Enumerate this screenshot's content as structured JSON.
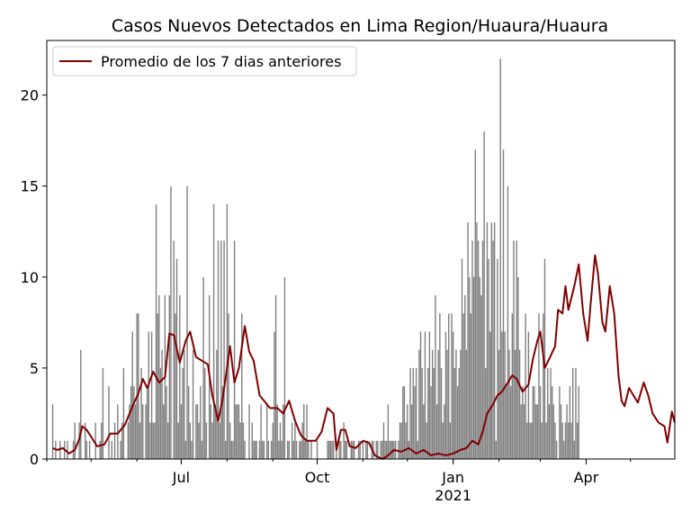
{
  "chart_data": {
    "type": "bar",
    "title": "Casos Nuevos Detectados en Lima Region/Huaura/Huaura",
    "xlabel": "",
    "ylabel": "",
    "x_range": [
      "2020-04-01",
      "2021-05-31"
    ],
    "ylim": [
      0,
      23
    ],
    "y_ticks": [
      0,
      5,
      10,
      15,
      20
    ],
    "x_ticks": [
      {
        "date": "2020-07-01",
        "label": "Jul",
        "sublabel": ""
      },
      {
        "date": "2020-10-01",
        "label": "Oct",
        "sublabel": ""
      },
      {
        "date": "2021-01-01",
        "label": "Jan",
        "sublabel": "2021"
      },
      {
        "date": "2021-04-01",
        "label": "Apr",
        "sublabel": ""
      }
    ],
    "grid": false,
    "legend": {
      "position": "top-left",
      "entries": [
        "Promedio de los 7 dias anteriores"
      ]
    },
    "colors": {
      "bars": "#808080",
      "line": "#800000"
    },
    "series": [
      {
        "name": "Casos nuevos",
        "type": "bar",
        "daily_values_from_start_date": "2020-04-05",
        "values": [
          3,
          0,
          1,
          0,
          0,
          1,
          0,
          0,
          1,
          0,
          1,
          0,
          0,
          0,
          1,
          2,
          0,
          0,
          2,
          6,
          0,
          0,
          2,
          1,
          0,
          1,
          0,
          0,
          0,
          2,
          0,
          0,
          1,
          2,
          5,
          0,
          0,
          0,
          4,
          0,
          1,
          0,
          2,
          0,
          3,
          0,
          1,
          2,
          5,
          0,
          0,
          2,
          3,
          4,
          7,
          4,
          3,
          8,
          8,
          2,
          5,
          3,
          0,
          3,
          4,
          7,
          2,
          7,
          2,
          2,
          14,
          8,
          9,
          5,
          6,
          3,
          9,
          4,
          2,
          9,
          15,
          0,
          12,
          8,
          11,
          2,
          9,
          3,
          5,
          6,
          1,
          15,
          4,
          2,
          1,
          6,
          0,
          3,
          3,
          2,
          4,
          1,
          10,
          5,
          2,
          0,
          9,
          3,
          2,
          14,
          3,
          6,
          12,
          2,
          12,
          4,
          12,
          1,
          14,
          8,
          2,
          1,
          1,
          12,
          3,
          3,
          3,
          2,
          8,
          2,
          1,
          0,
          0,
          3,
          0,
          2,
          1,
          1,
          1,
          0,
          1,
          3,
          1,
          1,
          0,
          3,
          1,
          0,
          1,
          2,
          7,
          9,
          3,
          1,
          2,
          1,
          3,
          10,
          0,
          1,
          1,
          0,
          2,
          1,
          2,
          1,
          0,
          1,
          1,
          2,
          3,
          1,
          3,
          1,
          0,
          1,
          0,
          0,
          0,
          1,
          0,
          0,
          0,
          0,
          0,
          0,
          1,
          1,
          1,
          1,
          1,
          0,
          1,
          0,
          1,
          1,
          0,
          2,
          1,
          1,
          0,
          0,
          1,
          1,
          1,
          0,
          0,
          1,
          1,
          0,
          1,
          0,
          1,
          1,
          0,
          0,
          1,
          1,
          0,
          1,
          1,
          0,
          1,
          1,
          2,
          1,
          1,
          3,
          1,
          1,
          1,
          1,
          1,
          0,
          1,
          2,
          2,
          4,
          4,
          2,
          3,
          1,
          5,
          3,
          5,
          4,
          5,
          1,
          6,
          7,
          5,
          3,
          7,
          2,
          5,
          7,
          4,
          6,
          5,
          9,
          3,
          6,
          8,
          5,
          2,
          3,
          7,
          6,
          8,
          2,
          8,
          7,
          5,
          6,
          4,
          5,
          6,
          11,
          8,
          9,
          6,
          13,
          10,
          8,
          12,
          10,
          17,
          13,
          12,
          10,
          9,
          12,
          18,
          5,
          13,
          11,
          7,
          13,
          12,
          13,
          1,
          11,
          6,
          22,
          7,
          17,
          7,
          4,
          15,
          6,
          4,
          8,
          12,
          6,
          12,
          10,
          6,
          3,
          4,
          3,
          8,
          2,
          7,
          2,
          2,
          4,
          4,
          3,
          3,
          8,
          4,
          2,
          8,
          11,
          2,
          5,
          3,
          5,
          4,
          3,
          2,
          1,
          0,
          4,
          3,
          2,
          1,
          2,
          3,
          2,
          4,
          2,
          5,
          1,
          5,
          2,
          4
        ]
      },
      {
        "name": "Promedio de los 7 dias anteriores",
        "type": "line",
        "points": [
          [
            "2020-04-05",
            0.6
          ],
          [
            "2020-04-08",
            0.5
          ],
          [
            "2020-04-12",
            0.6
          ],
          [
            "2020-04-16",
            0.3
          ],
          [
            "2020-04-20",
            0.5
          ],
          [
            "2020-04-23",
            1.1
          ],
          [
            "2020-04-25",
            1.8
          ],
          [
            "2020-04-28",
            1.6
          ],
          [
            "2020-05-02",
            1.1
          ],
          [
            "2020-05-05",
            0.7
          ],
          [
            "2020-05-10",
            0.8
          ],
          [
            "2020-05-14",
            1.4
          ],
          [
            "2020-05-19",
            1.4
          ],
          [
            "2020-05-24",
            1.9
          ],
          [
            "2020-05-29",
            2.9
          ],
          [
            "2020-06-02",
            3.6
          ],
          [
            "2020-06-05",
            4.4
          ],
          [
            "2020-06-08",
            3.9
          ],
          [
            "2020-06-12",
            4.8
          ],
          [
            "2020-06-16",
            4.2
          ],
          [
            "2020-06-20",
            4.5
          ],
          [
            "2020-06-23",
            6.9
          ],
          [
            "2020-06-26",
            6.8
          ],
          [
            "2020-06-30",
            5.3
          ],
          [
            "2020-07-04",
            6.5
          ],
          [
            "2020-07-07",
            7.0
          ],
          [
            "2020-07-11",
            5.6
          ],
          [
            "2020-07-15",
            5.4
          ],
          [
            "2020-07-19",
            5.2
          ],
          [
            "2020-07-22",
            3.5
          ],
          [
            "2020-07-26",
            2.1
          ],
          [
            "2020-07-29",
            3.3
          ],
          [
            "2020-08-03",
            6.2
          ],
          [
            "2020-08-06",
            4.2
          ],
          [
            "2020-08-09",
            5.0
          ],
          [
            "2020-08-13",
            7.3
          ],
          [
            "2020-08-16",
            5.9
          ],
          [
            "2020-08-19",
            5.4
          ],
          [
            "2020-08-23",
            3.5
          ],
          [
            "2020-08-26",
            3.2
          ],
          [
            "2020-08-30",
            2.8
          ],
          [
            "2020-09-04",
            2.8
          ],
          [
            "2020-09-08",
            2.5
          ],
          [
            "2020-09-12",
            3.2
          ],
          [
            "2020-09-16",
            2.1
          ],
          [
            "2020-09-20",
            1.3
          ],
          [
            "2020-09-24",
            1.0
          ],
          [
            "2020-09-30",
            1.0
          ],
          [
            "2020-10-04",
            1.5
          ],
          [
            "2020-10-08",
            2.8
          ],
          [
            "2020-10-12",
            2.5
          ],
          [
            "2020-10-14",
            0.5
          ],
          [
            "2020-10-17",
            1.6
          ],
          [
            "2020-10-20",
            1.6
          ],
          [
            "2020-10-23",
            0.7
          ],
          [
            "2020-10-27",
            0.6
          ],
          [
            "2020-11-01",
            1.0
          ],
          [
            "2020-11-05",
            0.9
          ],
          [
            "2020-11-09",
            0.2
          ],
          [
            "2020-11-14",
            0.0
          ],
          [
            "2020-11-18",
            0.2
          ],
          [
            "2020-11-22",
            0.5
          ],
          [
            "2020-11-27",
            0.4
          ],
          [
            "2020-12-02",
            0.6
          ],
          [
            "2020-12-07",
            0.3
          ],
          [
            "2020-12-12",
            0.5
          ],
          [
            "2020-12-17",
            0.2
          ],
          [
            "2020-12-22",
            0.3
          ],
          [
            "2020-12-27",
            0.2
          ],
          [
            "2021-01-01",
            0.3
          ],
          [
            "2021-01-06",
            0.5
          ],
          [
            "2021-01-10",
            0.6
          ],
          [
            "2021-01-14",
            1.0
          ],
          [
            "2021-01-18",
            0.8
          ],
          [
            "2021-01-21",
            1.5
          ],
          [
            "2021-01-24",
            2.5
          ],
          [
            "2021-01-28",
            3.0
          ],
          [
            "2021-01-31",
            3.5
          ],
          [
            "2021-02-03",
            3.7
          ],
          [
            "2021-02-07",
            4.2
          ],
          [
            "2021-02-10",
            4.6
          ],
          [
            "2021-02-13",
            4.4
          ],
          [
            "2021-02-17",
            3.7
          ],
          [
            "2021-02-21",
            4.1
          ],
          [
            "2021-02-24",
            5.5
          ],
          [
            "2021-02-27",
            6.5
          ],
          [
            "2021-03-01",
            7.0
          ],
          [
            "2021-03-04",
            5.0
          ],
          [
            "2021-03-07",
            5.5
          ],
          [
            "2021-03-11",
            6.2
          ],
          [
            "2021-03-13",
            8.2
          ],
          [
            "2021-03-16",
            8.0
          ],
          [
            "2021-03-18",
            9.5
          ],
          [
            "2021-03-20",
            8.2
          ],
          [
            "2021-03-24",
            9.5
          ],
          [
            "2021-03-27",
            10.7
          ],
          [
            "2021-03-30",
            8.0
          ],
          [
            "2021-04-02",
            6.5
          ],
          [
            "2021-04-04",
            8.5
          ],
          [
            "2021-04-07",
            11.2
          ],
          [
            "2021-04-09",
            10.2
          ],
          [
            "2021-04-12",
            7.5
          ],
          [
            "2021-04-14",
            7.0
          ],
          [
            "2021-04-17",
            9.5
          ],
          [
            "2021-04-20",
            8.0
          ],
          [
            "2021-04-23",
            4.5
          ],
          [
            "2021-04-25",
            3.2
          ],
          [
            "2021-04-27",
            2.9
          ],
          [
            "2021-04-30",
            3.9
          ],
          [
            "2021-05-03",
            3.5
          ],
          [
            "2021-05-06",
            3.1
          ],
          [
            "2021-05-10",
            4.2
          ],
          [
            "2021-05-13",
            3.5
          ],
          [
            "2021-05-16",
            2.5
          ],
          [
            "2021-05-20",
            2.0
          ],
          [
            "2021-05-24",
            1.8
          ],
          [
            "2021-05-26",
            0.9
          ],
          [
            "2021-05-29",
            2.6
          ],
          [
            "2021-05-31",
            2.0
          ]
        ]
      }
    ]
  }
}
